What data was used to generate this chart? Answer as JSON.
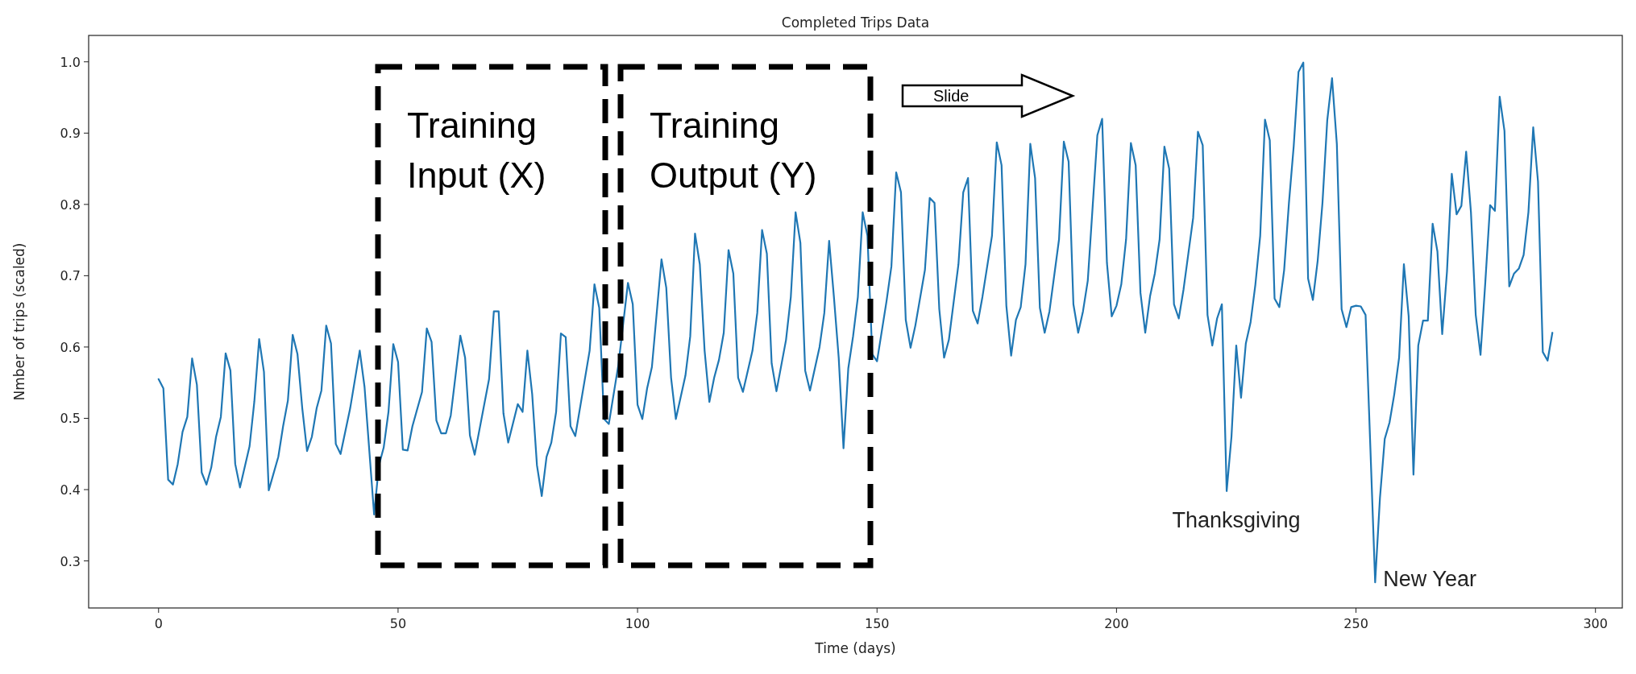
{
  "chart_data": {
    "type": "line",
    "title": "Completed Trips Data",
    "xlabel": "Time (days)",
    "ylabel": "Nmber of trips (scaled)",
    "xlim": [
      -14.6,
      305.6
    ],
    "ylim": [
      0.234,
      1.037
    ],
    "xticks": [
      0,
      50,
      100,
      150,
      200,
      250,
      300
    ],
    "yticks": [
      0.3,
      0.4,
      0.5,
      0.6,
      0.7,
      0.8,
      0.9,
      {
        "value": 1,
        "label": "1.0"
      }
    ],
    "annotations": [
      "Training Input (X)",
      "Training Output (Y)",
      "Slide",
      {
        "text": "Thanksgiving",
        "x": 223,
        "y": 0.398
      },
      {
        "text": "New Year",
        "x": 254,
        "y": 0.27
      }
    ],
    "series": [
      {
        "color": "#1f77b4",
        "x": [
          0,
          1,
          2,
          3,
          4,
          5,
          6,
          7,
          8,
          9,
          10,
          11,
          12,
          13,
          14,
          15,
          16,
          17,
          19,
          20,
          21,
          22,
          23,
          25,
          26,
          27,
          28,
          29,
          30,
          31,
          32,
          33,
          34,
          35,
          36,
          37,
          38,
          40,
          42,
          43,
          45,
          46,
          47,
          48,
          49,
          50,
          51,
          52,
          53,
          55,
          56,
          57,
          58,
          59,
          60,
          61,
          63,
          64,
          65,
          66,
          69,
          70,
          71,
          72,
          73,
          75,
          76,
          77,
          78,
          79,
          80,
          81,
          82,
          83,
          84,
          85,
          86,
          87,
          90,
          91,
          92,
          93,
          94,
          96,
          98,
          99,
          100,
          101,
          102,
          103,
          105,
          106,
          107,
          108,
          110,
          111,
          112,
          113,
          114,
          115,
          116,
          117,
          118,
          119,
          120,
          121,
          122,
          124,
          125,
          126,
          127,
          128,
          129,
          131,
          132,
          133,
          134,
          135,
          136,
          138,
          139,
          140,
          141,
          142,
          143,
          144,
          145,
          146,
          147,
          148,
          149,
          150,
          152,
          153,
          154,
          155,
          156,
          157,
          158,
          160,
          161,
          162,
          163,
          164,
          165,
          167,
          168,
          169,
          170,
          171,
          172,
          174,
          175,
          176,
          177,
          178,
          179,
          180,
          181,
          182,
          183,
          184,
          185,
          186,
          188,
          189,
          190,
          191,
          192,
          193,
          194,
          196,
          197,
          198,
          199,
          200,
          201,
          202,
          203,
          204,
          205,
          206,
          207,
          208,
          209,
          210,
          211,
          212,
          213,
          214,
          215,
          216,
          217,
          218,
          219,
          220,
          221,
          222,
          223,
          224,
          225,
          226,
          227,
          228,
          229,
          230,
          231,
          232,
          233,
          234,
          235,
          236,
          237,
          238,
          239,
          240,
          241,
          242,
          243,
          244,
          245,
          246,
          247,
          248,
          249,
          250,
          251,
          252,
          253,
          254,
          255,
          256,
          257,
          258,
          259,
          260,
          261,
          262,
          263,
          264,
          265,
          266,
          267,
          268,
          269,
          270,
          271,
          272,
          273,
          274,
          275,
          276,
          277,
          278,
          279,
          280,
          281,
          282,
          283,
          284,
          285,
          286,
          287,
          288,
          289,
          290,
          291
        ],
        "values": [
          0.555,
          0.542,
          0.414,
          0.407,
          0.436,
          0.481,
          0.502,
          0.584,
          0.547,
          0.424,
          0.407,
          0.431,
          0.474,
          0.502,
          0.591,
          0.567,
          0.436,
          0.403,
          0.461,
          0.524,
          0.611,
          0.565,
          0.399,
          0.446,
          0.489,
          0.525,
          0.617,
          0.59,
          0.514,
          0.454,
          0.474,
          0.514,
          0.539,
          0.63,
          0.605,
          0.464,
          0.45,
          0.514,
          0.595,
          0.544,
          0.365,
          0.434,
          0.459,
          0.509,
          0.604,
          0.579,
          0.456,
          0.455,
          0.489,
          0.537,
          0.626,
          0.607,
          0.497,
          0.479,
          0.479,
          0.504,
          0.616,
          0.585,
          0.476,
          0.449,
          0.555,
          0.65,
          0.65,
          0.507,
          0.466,
          0.52,
          0.509,
          0.595,
          0.534,
          0.434,
          0.391,
          0.446,
          0.466,
          0.509,
          0.619,
          0.614,
          0.489,
          0.475,
          0.595,
          0.688,
          0.655,
          0.499,
          0.492,
          0.575,
          0.69,
          0.66,
          0.519,
          0.499,
          0.542,
          0.572,
          0.723,
          0.683,
          0.557,
          0.499,
          0.56,
          0.615,
          0.759,
          0.716,
          0.595,
          0.523,
          0.557,
          0.582,
          0.62,
          0.736,
          0.703,
          0.557,
          0.537,
          0.595,
          0.648,
          0.764,
          0.731,
          0.577,
          0.538,
          0.61,
          0.67,
          0.789,
          0.746,
          0.567,
          0.539,
          0.6,
          0.648,
          0.749,
          0.67,
          0.585,
          0.458,
          0.57,
          0.615,
          0.67,
          0.789,
          0.756,
          0.59,
          0.58,
          0.665,
          0.713,
          0.845,
          0.817,
          0.638,
          0.599,
          0.63,
          0.708,
          0.809,
          0.802,
          0.653,
          0.585,
          0.61,
          0.716,
          0.817,
          0.837,
          0.651,
          0.633,
          0.67,
          0.756,
          0.887,
          0.855,
          0.658,
          0.588,
          0.638,
          0.656,
          0.716,
          0.885,
          0.837,
          0.655,
          0.62,
          0.65,
          0.751,
          0.888,
          0.86,
          0.66,
          0.62,
          0.65,
          0.693,
          0.897,
          0.92,
          0.718,
          0.643,
          0.658,
          0.688,
          0.751,
          0.886,
          0.855,
          0.676,
          0.62,
          0.671,
          0.703,
          0.751,
          0.881,
          0.85,
          0.66,
          0.64,
          0.681,
          0.731,
          0.781,
          0.902,
          0.883,
          0.645,
          0.602,
          0.64,
          0.66,
          0.398,
          0.474,
          0.602,
          0.529,
          0.605,
          0.635,
          0.688,
          0.756,
          0.919,
          0.89,
          0.668,
          0.656,
          0.708,
          0.802,
          0.882,
          0.986,
          0.999,
          0.696,
          0.666,
          0.721,
          0.802,
          0.918,
          0.977,
          0.885,
          0.653,
          0.628,
          0.656,
          0.658,
          0.657,
          0.645,
          0.459,
          0.27,
          0.388,
          0.471,
          0.494,
          0.534,
          0.585,
          0.716,
          0.643,
          0.421,
          0.602,
          0.637,
          0.637,
          0.773,
          0.734,
          0.618,
          0.706,
          0.843,
          0.786,
          0.798,
          0.874,
          0.789,
          0.645,
          0.589,
          0.691,
          0.799,
          0.791,
          0.951,
          0.903,
          0.685,
          0.703,
          0.71,
          0.729,
          0.789,
          0.908,
          0.832,
          0.593,
          0.581,
          0.62
        ]
      }
    ]
  }
}
